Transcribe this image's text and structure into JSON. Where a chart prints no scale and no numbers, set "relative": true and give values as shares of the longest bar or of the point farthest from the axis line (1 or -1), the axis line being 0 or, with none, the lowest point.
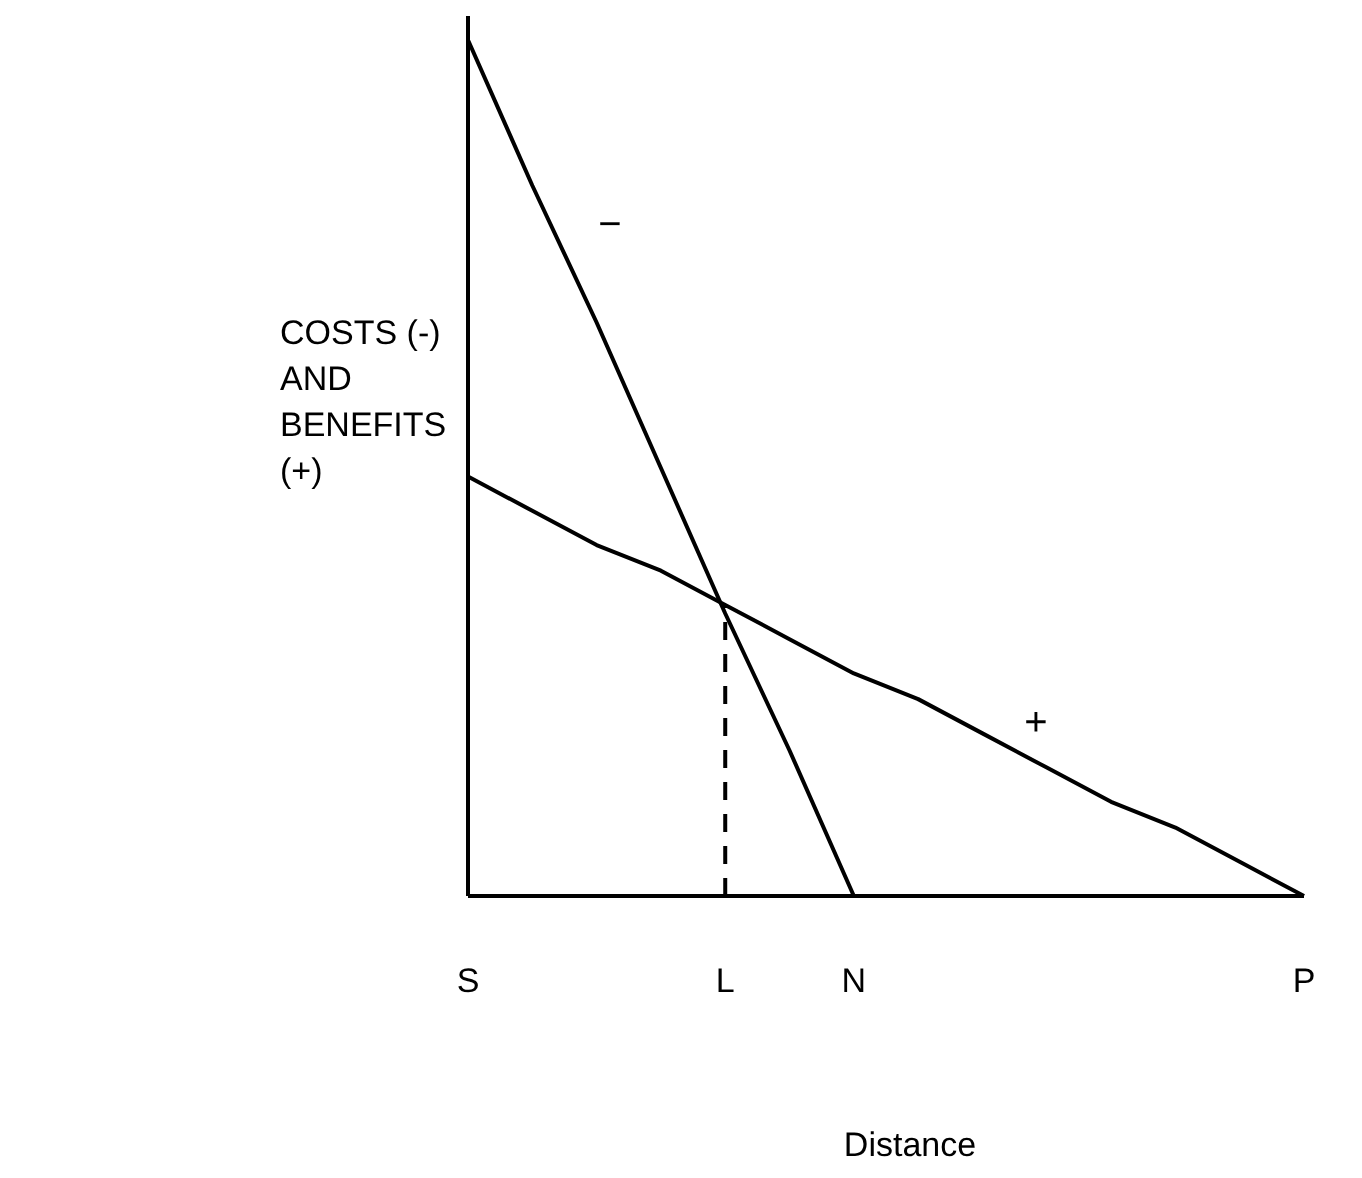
{
  "chart_data": {
    "type": "line",
    "relative": true,
    "xlabel": "Distance",
    "ylabel": "COSTS (-) AND BENEFITS (+)",
    "categories": [
      "S",
      null,
      null,
      null,
      "L",
      null,
      "N",
      null,
      null,
      null,
      null,
      null,
      null,
      "P"
    ],
    "marker": "none",
    "tick_labels": "x",
    "series": [
      {
        "color": "#000000",
        "values": [
          1,
          0.83,
          0.67,
          0.5,
          0.33,
          0.17,
          0,
          null,
          null,
          null,
          null,
          null,
          null,
          null
        ]
      },
      {
        "color": "#000000",
        "values": [
          0.49,
          0.45,
          0.41,
          0.38,
          0.34,
          0.3,
          0.26,
          0.23,
          0.19,
          0.15,
          0.11,
          0.08,
          0.04,
          0
        ]
      }
    ],
    "ref_lines": [
      {
        "axis": "x",
        "value": "L",
        "line_style": "dashed",
        "color": "#000000"
      }
    ],
    "annotations": [
      "−",
      "+"
    ]
  }
}
